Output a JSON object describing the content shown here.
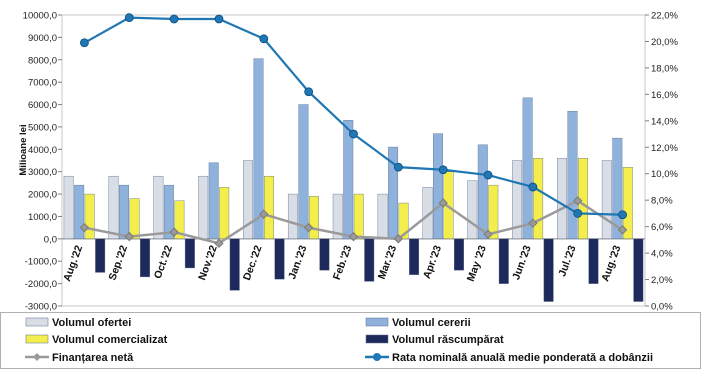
{
  "chart_data": {
    "type": "bar",
    "categories": [
      "Aug.'22",
      "Sep.'22",
      "Oct.'22",
      "Nov.'22",
      "Dec.'22",
      "Jan.'23",
      "Feb.'23",
      "Mar.'23",
      "Apr.'23",
      "May '23",
      "Jun.'23",
      "Jul.'23",
      "Aug.'23"
    ],
    "ylabel": "Milioane lei",
    "ylim": [
      -3000,
      10000
    ],
    "y_ticks": [
      "10000,0",
      "9000,0",
      "8000,0",
      "7000,0",
      "6000,0",
      "5000,0",
      "4000,0",
      "3000,0",
      "2000,0",
      "1000,0",
      "0,0",
      "-1000,0",
      "-2000,0",
      "-3000,0"
    ],
    "y2lim": [
      0,
      22
    ],
    "y2_ticks": [
      "22,0%",
      "20,0%",
      "18,0%",
      "16,0%",
      "14,0%",
      "12,0%",
      "10,0%",
      "8,0%",
      "6,0%",
      "4,0%",
      "2,0%",
      "0,0%"
    ],
    "grid": false,
    "legend_position": "bottom",
    "series": [
      {
        "name": "Volumul ofertei",
        "kind": "bar",
        "axis": "left",
        "color": "#d9dde6",
        "values": [
          2800,
          2800,
          2800,
          2800,
          3500,
          2000,
          2000,
          2000,
          2300,
          2600,
          3500,
          3600,
          3500
        ]
      },
      {
        "name": "Volumul cererii",
        "kind": "bar",
        "axis": "left",
        "color": "#8fb2dc",
        "values": [
          2400,
          2400,
          2400,
          3400,
          8050,
          6000,
          5300,
          4100,
          4700,
          4200,
          6300,
          5700,
          4500
        ]
      },
      {
        "name": "Volumul comercializat",
        "kind": "bar",
        "axis": "left",
        "color": "#f3ee4c",
        "values": [
          2000,
          1800,
          1700,
          2300,
          2800,
          1900,
          2000,
          1600,
          3000,
          2400,
          3600,
          3600,
          3200
        ]
      },
      {
        "name": "Volumul răscumpărat",
        "kind": "bar",
        "axis": "left",
        "color": "#1f2a5c",
        "values": [
          -1500,
          -1700,
          -1300,
          -2300,
          -1800,
          -1400,
          -1900,
          -1600,
          -1400,
          -2000,
          -2800,
          -2000,
          -2800
        ]
      },
      {
        "name": "Finanțarea netă",
        "kind": "line",
        "axis": "left",
        "color": "#9a9a9a",
        "values": [
          500,
          100,
          300,
          -200,
          1100,
          500,
          100,
          0,
          1600,
          200,
          700,
          1700,
          400
        ]
      },
      {
        "name": "Rata nominală anuală medie ponderată a dobânzii",
        "kind": "line",
        "axis": "right",
        "color": "#1f77b4",
        "values": [
          19.9,
          21.8,
          21.7,
          21.7,
          20.2,
          16.2,
          13.0,
          10.5,
          10.3,
          9.9,
          9.0,
          7.0,
          6.9
        ]
      }
    ]
  }
}
